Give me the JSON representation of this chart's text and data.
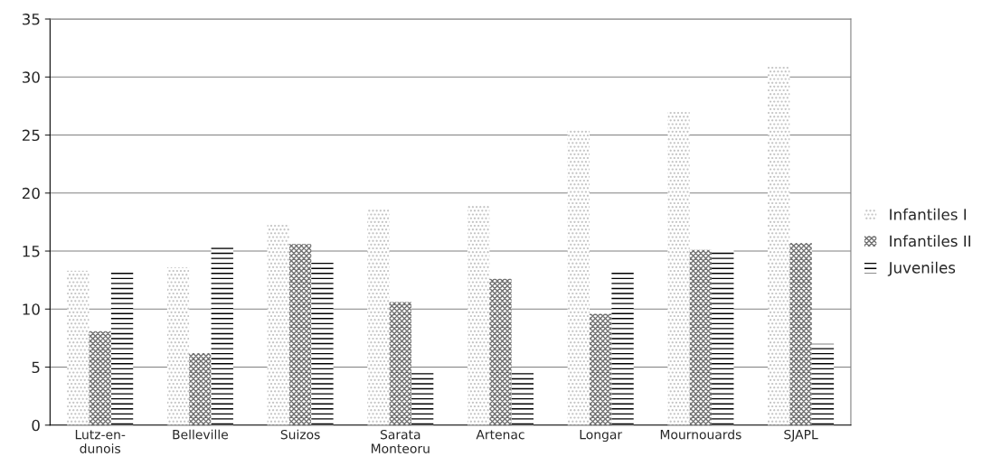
{
  "chart_data": {
    "type": "bar",
    "categories": [
      "Lutz-en-\ndunois",
      "Belleville",
      "Suizos",
      "Sarata\nMonteoru",
      "Artenac",
      "Longar",
      "Mournouards",
      "SJAPL"
    ],
    "series": [
      {
        "name": "Infantiles I",
        "color": "#c0c0c0",
        "values": [
          13.3,
          13.6,
          17.3,
          18.6,
          18.9,
          25.5,
          27.1,
          30.9
        ]
      },
      {
        "name": "Infantiles II",
        "color": "#707070",
        "values": [
          8.1,
          6.2,
          15.6,
          10.6,
          12.6,
          9.6,
          15.1,
          15.7
        ]
      },
      {
        "name": "Juveniles",
        "color": "#000000",
        "values": [
          13.3,
          15.3,
          14.0,
          4.6,
          4.6,
          13.2,
          15.1,
          7.0
        ]
      }
    ],
    "ylim": [
      0,
      35
    ],
    "yticks": [
      0,
      5,
      10,
      15,
      20,
      25,
      30,
      35
    ],
    "grid": "y",
    "legend": "right"
  }
}
